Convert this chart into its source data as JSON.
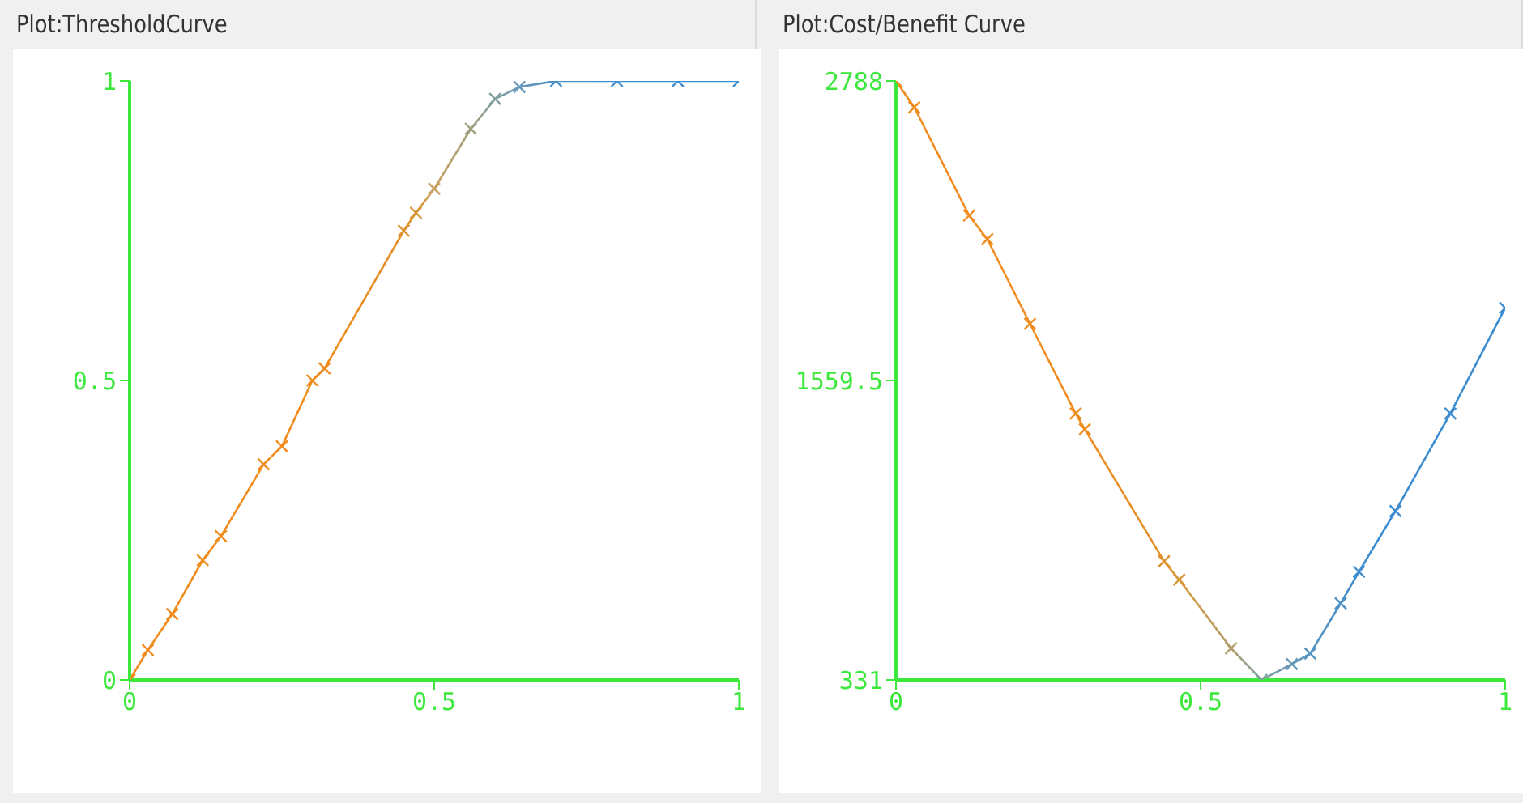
{
  "chart_data": [
    {
      "type": "line",
      "title": "Plot:ThresholdCurve",
      "x": [
        0,
        0.03,
        0.07,
        0.12,
        0.15,
        0.22,
        0.25,
        0.3,
        0.32,
        0.45,
        0.47,
        0.5,
        0.56,
        0.6,
        0.64,
        0.7,
        0.8,
        0.9,
        1
      ],
      "series": [
        {
          "values": [
            0,
            0.05,
            0.11,
            0.2,
            0.24,
            0.36,
            0.39,
            0.5,
            0.52,
            0.75,
            0.78,
            0.82,
            0.92,
            0.97,
            0.99,
            1,
            1,
            1,
            1
          ],
          "colors": [
            "#f08c1e",
            "#f08c1e",
            "#f08c1e",
            "#f08c1e",
            "#f08c1e",
            "#f08c1e",
            "#f08c1e",
            "#f08c1e",
            "#f08c1e",
            "#e0902a",
            "#d89838",
            "#c8a060",
            "#a0a080",
            "#80a0a0",
            "#6898b8",
            "#4890c8",
            "#3c8cd0",
            "#3c8cd0",
            "#3c8cd0"
          ]
        }
      ],
      "xlim": [
        0,
        1
      ],
      "ylim": [
        0,
        1
      ],
      "xticks": [
        0,
        0.5,
        1
      ],
      "yticks": [
        0,
        0.5,
        1
      ],
      "marker": "cross",
      "line_style": "solid"
    },
    {
      "type": "line",
      "title": "Plot:Cost/Benefit Curve",
      "x": [
        0,
        0.03,
        0.12,
        0.15,
        0.22,
        0.295,
        0.31,
        0.44,
        0.465,
        0.55,
        0.6,
        0.65,
        0.68,
        0.73,
        0.76,
        0.82,
        0.91,
        1
      ],
      "series": [
        {
          "values": [
            2788,
            2680,
            2236,
            2139,
            1792,
            1424,
            1359,
            818,
            742,
            461,
            331,
            396,
            439,
            645,
            775,
            1024,
            1424,
            1857
          ],
          "colors": [
            "#f08c1e",
            "#f08c1e",
            "#f08c1e",
            "#f08c1e",
            "#f08c1e",
            "#f08c1e",
            "#f08c1e",
            "#e0902a",
            "#d89838",
            "#b0a070",
            "#80a0a0",
            "#6898b8",
            "#5894c0",
            "#4890c8",
            "#3c8cd0",
            "#3c8cd0",
            "#3c8cd0",
            "#3c8cd0"
          ]
        }
      ],
      "xlim": [
        0,
        1
      ],
      "ylim": [
        331,
        2788
      ],
      "xticks": [
        0,
        0.5,
        1
      ],
      "yticks": [
        331,
        1559.5,
        2788
      ],
      "marker": "cross",
      "line_style": "solid"
    }
  ]
}
